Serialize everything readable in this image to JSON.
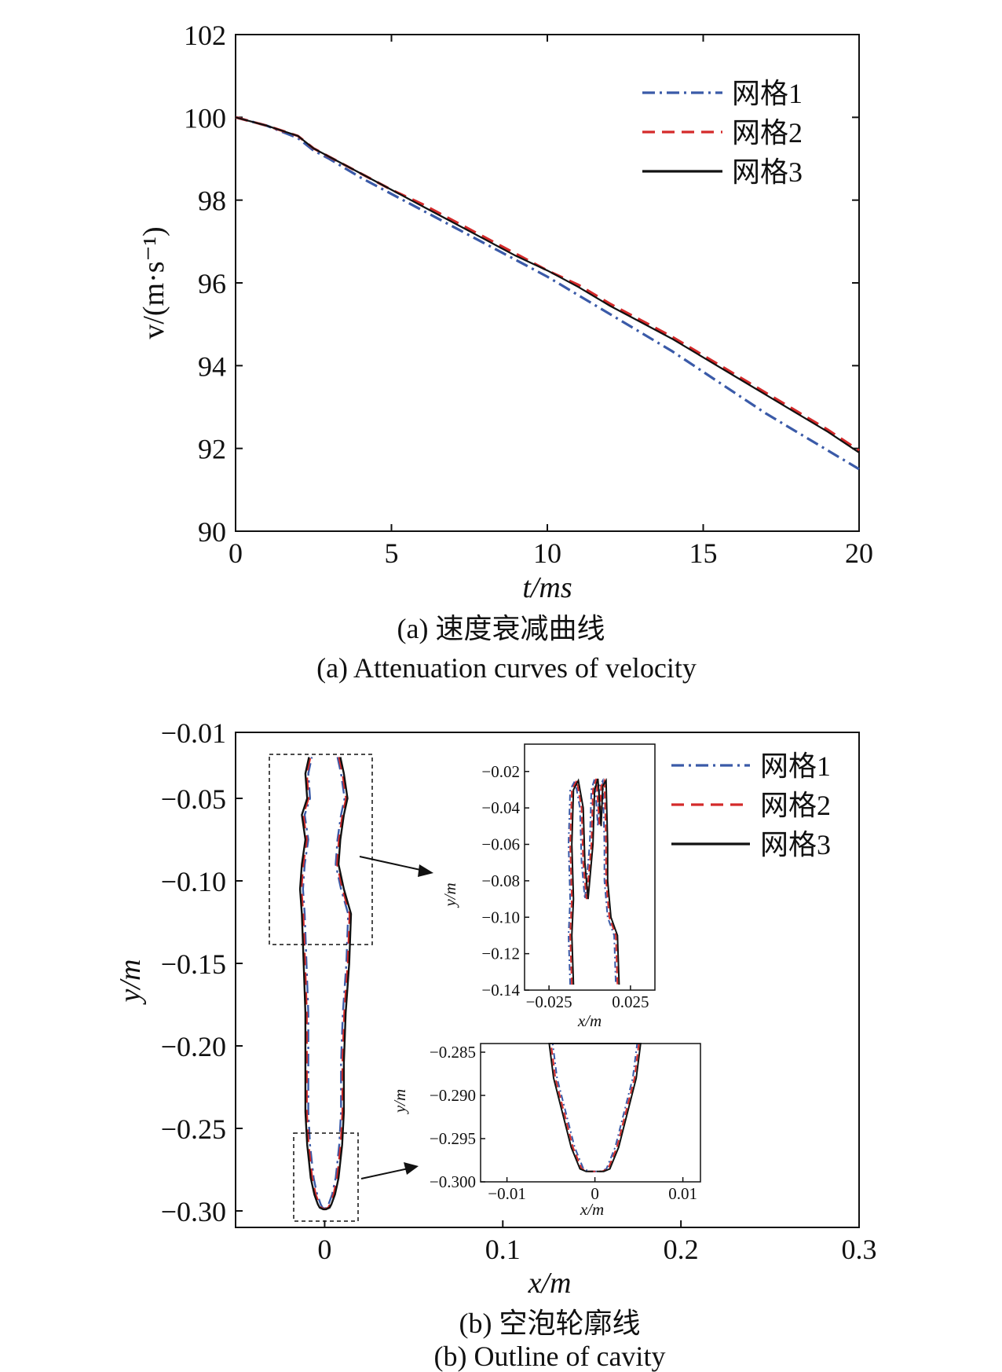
{
  "chart_data": [
    {
      "type": "line",
      "xlabel": "t/ms",
      "ylabel": "v/(m·s⁻¹)",
      "xlim": [
        0,
        20
      ],
      "ylim": [
        90,
        102
      ],
      "xticks": [
        "0",
        "5",
        "10",
        "15",
        "20"
      ],
      "yticks": [
        "90",
        "92",
        "94",
        "96",
        "98",
        "100",
        "102"
      ],
      "legend_position": "top-right",
      "caption_cn": "(a) 速度衰减曲线",
      "caption_en": "(a) Attenuation curves of velocity",
      "series": [
        {
          "name": "网格1",
          "color": "#3a5aa8",
          "style": "dash-dot",
          "x": [
            0,
            1,
            2,
            2.5,
            3,
            4,
            5,
            6,
            7,
            8,
            9,
            10,
            11,
            12,
            13,
            14,
            15,
            16,
            17,
            18,
            19,
            20
          ],
          "y": [
            100.0,
            99.8,
            99.5,
            99.2,
            99.0,
            98.55,
            98.15,
            97.75,
            97.35,
            96.95,
            96.55,
            96.15,
            95.7,
            95.25,
            94.8,
            94.35,
            93.85,
            93.35,
            92.85,
            92.4,
            91.95,
            91.5
          ]
        },
        {
          "name": "网格2",
          "color": "#d42a2a",
          "style": "dashed",
          "x": [
            0,
            1,
            2,
            2.5,
            3,
            4,
            5,
            6,
            7,
            8,
            9,
            10,
            11,
            12,
            13,
            14,
            15,
            16,
            17,
            18,
            19,
            20
          ],
          "y": [
            100.0,
            99.8,
            99.55,
            99.25,
            99.05,
            98.65,
            98.25,
            97.9,
            97.5,
            97.1,
            96.7,
            96.3,
            95.95,
            95.5,
            95.1,
            94.7,
            94.25,
            93.8,
            93.35,
            92.9,
            92.45,
            91.95
          ]
        },
        {
          "name": "网格3",
          "color": "#111111",
          "style": "solid",
          "x": [
            0,
            1,
            2,
            2.5,
            3,
            4,
            5,
            6,
            7,
            8,
            9,
            10,
            11,
            12,
            13,
            14,
            15,
            16,
            17,
            18,
            19,
            20
          ],
          "y": [
            100.0,
            99.8,
            99.55,
            99.25,
            99.05,
            98.65,
            98.25,
            97.85,
            97.45,
            97.05,
            96.65,
            96.3,
            95.9,
            95.45,
            95.05,
            94.65,
            94.2,
            93.75,
            93.3,
            92.85,
            92.4,
            91.9
          ]
        }
      ]
    },
    {
      "type": "line",
      "xlabel": "x/m",
      "ylabel": "y/m",
      "xlim": [
        -0.05,
        0.3
      ],
      "ylim": [
        -0.31,
        -0.01
      ],
      "xticks": [
        "0",
        "0.1",
        "0.2",
        "0.3"
      ],
      "yticks": [
        "−0.01",
        "−0.05",
        "−0.10",
        "−0.15",
        "−0.20",
        "−0.25",
        "−0.30"
      ],
      "legend_position": "top-right",
      "caption_cn": "(b) 空泡轮廓线",
      "caption_en": "(b) Outline of cavity",
      "series_names": [
        "网格1",
        "网格2",
        "网格3"
      ],
      "series_colors": [
        "#3a5aa8",
        "#d42a2a",
        "#111111"
      ],
      "cavity_outline": {
        "right_x": [
          0.008,
          0.01,
          0.012,
          0.01,
          0.008,
          0.007,
          0.01,
          0.014,
          0.013,
          0.011,
          0.01,
          0.01,
          0.009,
          0.008,
          0.007,
          0.006,
          0.005,
          0.004,
          0.003,
          0.002,
          0.0
        ],
        "left_x": [
          -0.008,
          -0.01,
          -0.009,
          -0.012,
          -0.01,
          -0.012,
          -0.013,
          -0.012,
          -0.011,
          -0.01,
          -0.01,
          -0.01,
          -0.009,
          -0.008,
          -0.007,
          -0.006,
          -0.005,
          -0.004,
          -0.003,
          -0.002,
          0.0
        ],
        "y": [
          -0.025,
          -0.035,
          -0.05,
          -0.06,
          -0.075,
          -0.09,
          -0.105,
          -0.12,
          -0.15,
          -0.18,
          -0.21,
          -0.24,
          -0.26,
          -0.27,
          -0.28,
          -0.285,
          -0.29,
          -0.293,
          -0.296,
          -0.298,
          -0.299
        ]
      },
      "inset_top": {
        "xlabel": "x/m",
        "ylabel": "y/m",
        "xlim": [
          -0.04,
          0.04
        ],
        "ylim": [
          -0.14,
          -0.005
        ],
        "xticks": [
          "−0.025",
          "0.025"
        ],
        "yticks": [
          "−0.02",
          "−0.04",
          "−0.06",
          "−0.08",
          "−0.10",
          "−0.12",
          "−0.14"
        ]
      },
      "inset_bottom": {
        "xlabel": "x/m",
        "ylabel": "y/m",
        "xlim": [
          -0.013,
          0.012
        ],
        "ylim": [
          -0.3,
          -0.284
        ],
        "xticks": [
          "−0.01",
          "0",
          "0.01"
        ],
        "yticks": [
          "−0.285",
          "−0.290",
          "−0.295",
          "−0.300"
        ],
        "right_x": [
          0.005,
          0.0045,
          0.0035,
          0.0025,
          0.0015,
          0.0008,
          0.0
        ],
        "y": [
          -0.284,
          -0.288,
          -0.292,
          -0.296,
          -0.2985,
          -0.2988,
          -0.2988
        ]
      }
    }
  ]
}
